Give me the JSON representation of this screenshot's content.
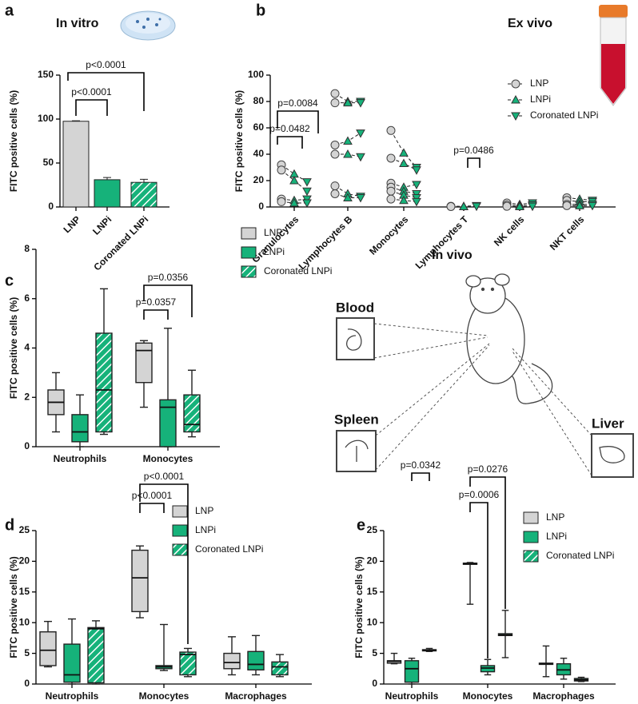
{
  "chart_data": [
    {
      "panel": "a",
      "type": "bar",
      "title": "In vitro",
      "ylabel": "FITC positive cells (%)",
      "categories": [
        "LNP",
        "LNPi",
        "Coronated LNPi"
      ],
      "values": [
        97.5,
        31,
        28
      ],
      "errors": [
        0.6,
        2.5,
        3.5
      ],
      "colors": [
        "#d4d4d4",
        "#16b27a",
        "#16b27a"
      ],
      "hatched": [
        false,
        false,
        true
      ],
      "ylim": [
        0,
        150
      ],
      "yticks": [
        0,
        50,
        100,
        150
      ],
      "annotations": [
        "p<0.0001",
        "p<0.0001"
      ]
    },
    {
      "panel": "b",
      "type": "scatter",
      "title": "Ex vivo",
      "ylabel": "FITC positive cells (%)",
      "categories": [
        "Granulocytes",
        "Lymphocytes B",
        "Monocytes",
        "Lymphocytes T",
        "NK cells",
        "NKT cells"
      ],
      "series": [
        {
          "name": "LNP",
          "color": "#d4d4d4",
          "marker": "circle",
          "values": [
            [
              32,
              28,
              6,
              4
            ],
            [
              86,
              79,
              47,
              40,
              16,
              10
            ],
            [
              58,
              37,
              18,
              15,
              12,
              6
            ],
            [
              0.5,
              0.3
            ],
            [
              3,
              1.5,
              0.5
            ],
            [
              7,
              5,
              2,
              1
            ]
          ]
        },
        {
          "name": "LNPi",
          "color": "#16b27a",
          "marker": "triangle-up",
          "values": [
            [
              25,
              20,
              5,
              3
            ],
            [
              80,
              79,
              50,
              40,
              10,
              7
            ],
            [
              41,
              33,
              15,
              12,
              9,
              5
            ],
            [
              0.5,
              0.3
            ],
            [
              2,
              1,
              0.3
            ],
            [
              6,
              4,
              2,
              1
            ]
          ]
        },
        {
          "name": "Coronated LNPi",
          "color": "#16b27a",
          "marker": "triangle-down",
          "values": [
            [
              19,
              12,
              6,
              3
            ],
            [
              80,
              79,
              56,
              38,
              8,
              7
            ],
            [
              30,
              28,
              17,
              10,
              7,
              4
            ],
            [
              1,
              0.5
            ],
            [
              3,
              1.5,
              0.5
            ],
            [
              5,
              4,
              2,
              1
            ]
          ]
        }
      ],
      "ylim": [
        0,
        100
      ],
      "yticks": [
        0,
        20,
        40,
        60,
        80,
        100
      ],
      "annotations": [
        "p=0.0482",
        "p=0.0084",
        "p=0.0486"
      ]
    },
    {
      "panel": "c",
      "type": "box",
      "ylabel": "FITC positive cells (%)",
      "categories": [
        "Neutrophils",
        "Monocytes"
      ],
      "series": [
        {
          "name": "LNP",
          "color": "#d4d4d4",
          "hatched": false,
          "values": [
            [
              0.6,
              1.3,
              1.8,
              2.3,
              3.0
            ],
            [
              1.6,
              2.6,
              3.9,
              4.2,
              4.3
            ]
          ]
        },
        {
          "name": "LNPi",
          "color": "#16b27a",
          "hatched": false,
          "values": [
            [
              0,
              0.2,
              0.6,
              1.3,
              2.1
            ],
            [
              0,
              0,
              1.6,
              1.9,
              4.8
            ]
          ]
        },
        {
          "name": "Coronated LNPi",
          "color": "#16b27a",
          "hatched": true,
          "values": [
            [
              0.5,
              0.6,
              2.3,
              4.6,
              6.4
            ],
            [
              0.4,
              0.6,
              0.9,
              2.1,
              3.1
            ]
          ]
        }
      ],
      "ylim": [
        0,
        8
      ],
      "yticks": [
        0,
        2,
        4,
        6,
        8
      ],
      "annotations": [
        "p=0.0357",
        "p=0.0356"
      ]
    },
    {
      "panel": "d",
      "type": "box",
      "ylabel": "FITC positive cells (%)",
      "categories": [
        "Neutrophils",
        "Monocytes",
        "Macrophages"
      ],
      "series": [
        {
          "name": "LNP",
          "color": "#d4d4d4",
          "hatched": false,
          "values": [
            [
              2.8,
              3,
              5.5,
              8.5,
              10.2
            ],
            [
              10.8,
              11.8,
              17.3,
              21.8,
              22.5
            ],
            [
              1.5,
              2.5,
              3.5,
              5,
              7.7
            ]
          ]
        },
        {
          "name": "LNPi",
          "color": "#16b27a",
          "hatched": false,
          "values": [
            [
              0,
              0.3,
              1.5,
              6.5,
              10.6
            ],
            [
              2.2,
              2.5,
              2.8,
              3,
              9.7
            ],
            [
              1.5,
              2.3,
              3.2,
              5.3,
              7.9
            ]
          ]
        },
        {
          "name": "Coronated LNPi",
          "color": "#16b27a",
          "hatched": true,
          "values": [
            [
              0,
              0.2,
              9,
              9.2,
              10.3
            ],
            [
              1.2,
              1.5,
              4.8,
              5.2,
              5.8
            ],
            [
              1.2,
              1.5,
              2.8,
              3.6,
              4.8
            ]
          ]
        }
      ],
      "ylim": [
        0,
        25
      ],
      "yticks": [
        0,
        5,
        10,
        15,
        20,
        25
      ],
      "annotations": [
        "p<0.0001",
        "p<0.0001"
      ]
    },
    {
      "panel": "e",
      "type": "box",
      "ylabel": "FITC positive cells (%)",
      "categories": [
        "Neutrophils",
        "Monocytes",
        "Macrophages"
      ],
      "series": [
        {
          "name": "LNP",
          "color": "#d4d4d4",
          "hatched": false,
          "values": [
            [
              3.3,
              3.4,
              3.7,
              3.8,
              5
            ],
            [
              13,
              19.5,
              19.6,
              19.7,
              19.8
            ],
            [
              1.2,
              3.2,
              3.3,
              3.4,
              6.2
            ]
          ]
        },
        {
          "name": "LNPi",
          "color": "#16b27a",
          "hatched": false,
          "values": [
            [
              0,
              0.3,
              2.5,
              3.8,
              4.2
            ],
            [
              1.5,
              2,
              2.6,
              3,
              4
            ],
            [
              0.8,
              1.5,
              2.3,
              3.3,
              4.2
            ]
          ]
        },
        {
          "name": "Coronated LNPi",
          "color": "#16b27a",
          "hatched": true,
          "values": [
            [
              5.3,
              5.4,
              5.5,
              5.6,
              5.8
            ],
            [
              4.3,
              7.9,
              8,
              8.2,
              12
            ],
            [
              0.4,
              0.5,
              0.7,
              0.9,
              1.1
            ]
          ]
        }
      ],
      "ylim": [
        0,
        25
      ],
      "yticks": [
        0,
        5,
        10,
        15,
        20,
        25
      ],
      "annotations": [
        "p=0.0342",
        "p=0.0006",
        "p=0.0276"
      ]
    }
  ],
  "diagram": {
    "title": "In vivo",
    "labels": [
      "Blood",
      "Spleen",
      "Liver"
    ]
  }
}
